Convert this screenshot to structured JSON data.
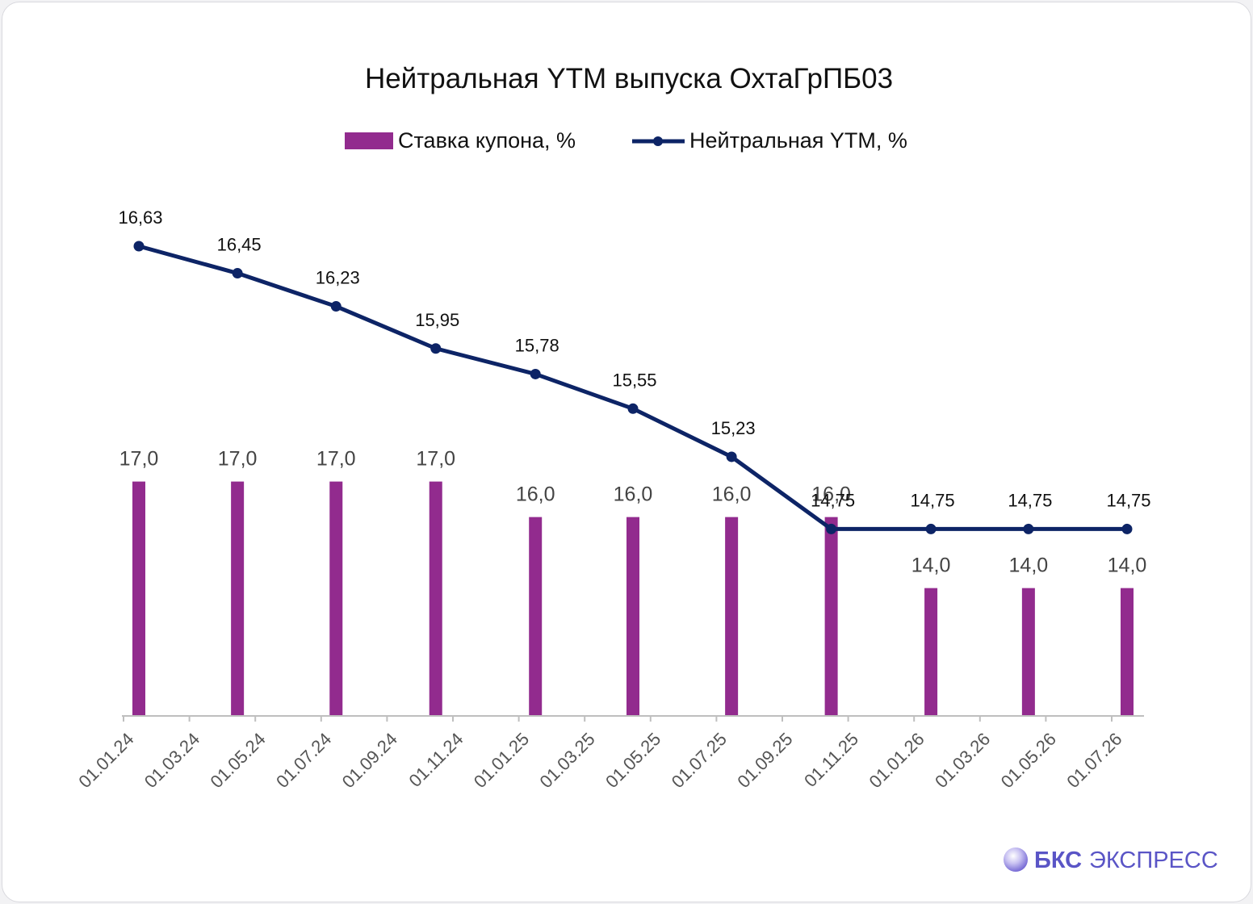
{
  "chart_data": {
    "type": "bar+line",
    "title": "Нейтральная YTM выпуска ОхтаГрПБ03",
    "x_tick_labels": [
      "01.01.24",
      "01.03.24",
      "01.05.24",
      "01.07.24",
      "01.09.24",
      "01.11.24",
      "01.01.25",
      "01.03.25",
      "01.05.25",
      "01.07.25",
      "01.09.25",
      "01.11.25",
      "01.01.26",
      "01.03.26",
      "01.05.26",
      "01.07.26"
    ],
    "x_dates": [
      "2024-01-01",
      "2024-04-01",
      "2024-07-01",
      "2024-10-01",
      "2025-01-01",
      "2025-04-01",
      "2025-07-01",
      "2025-10-01",
      "2026-01-01",
      "2026-04-01",
      "2026-07-01"
    ],
    "series": [
      {
        "name": "Ставка купона, %",
        "type": "bar",
        "color": "#922b8e",
        "values": [
          17.0,
          17.0,
          17.0,
          17.0,
          16.0,
          16.0,
          16.0,
          16.0,
          14.0,
          14.0,
          14.0
        ],
        "labels": [
          "17,0",
          "17,0",
          "17,0",
          "17,0",
          "16,0",
          "16,0",
          "16,0",
          "16,0",
          "14,0",
          "14,0",
          "14,0"
        ]
      },
      {
        "name": "Нейтральная YTM, %",
        "type": "line",
        "color": "#0d2466",
        "values": [
          16.63,
          16.45,
          16.23,
          15.95,
          15.78,
          15.55,
          15.23,
          14.75,
          14.75,
          14.75,
          14.75
        ],
        "labels": [
          "16,63",
          "16,45",
          "16,23",
          "15,95",
          "15,78",
          "15,55",
          "15,23",
          "14,75",
          "14,75",
          "14,75",
          "14,75"
        ]
      }
    ],
    "legend_position": "top",
    "grid": false
  },
  "branding": {
    "logo_text_bold": "БКС",
    "logo_text": "ЭКСПРЕСС"
  }
}
